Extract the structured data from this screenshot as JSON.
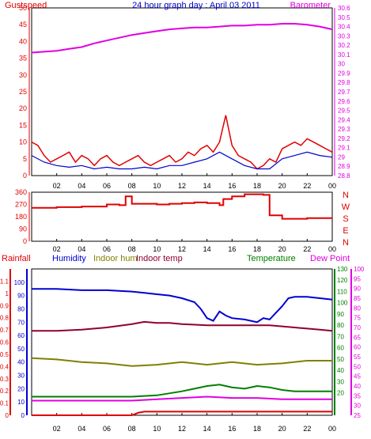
{
  "title": "24 hour graph day : April 03 2011",
  "colors": {
    "red": "#e00000",
    "blue": "#0000d0",
    "magenta": "#e000e0",
    "green": "#008000",
    "olive": "#808000",
    "maroon": "#900030",
    "darkred": "#b00000",
    "axis": "#000000",
    "yellow": "#e8e800"
  },
  "x_ticks": [
    "02",
    "04",
    "06",
    "08",
    "10",
    "12",
    "14",
    "16",
    "18",
    "20",
    "22",
    "00"
  ],
  "chart_data": [
    {
      "type": "line",
      "panel": "wind-barometer",
      "title": "24 hour graph day : April 03 2011",
      "x_range": [
        0,
        24
      ],
      "left_axis": {
        "label": "Gustspeed",
        "range": [
          0,
          50
        ],
        "ticks": [
          "0",
          "5",
          "10",
          "15",
          "20",
          "25",
          "30",
          "35",
          "40",
          "45",
          "50"
        ]
      },
      "right_axis": {
        "label": "Barometer",
        "range": [
          28.8,
          30.6
        ],
        "ticks": [
          "28.8",
          "28.9",
          "29",
          "29.1",
          "29.2",
          "29.3",
          "29.4",
          "29.5",
          "29.6",
          "29.7",
          "29.8",
          "29.9",
          "30",
          "30.1",
          "30.2",
          "30.3",
          "30.4",
          "30.5",
          "30.6"
        ]
      },
      "series": [
        {
          "name": "Barometer",
          "axis": "right",
          "color": "#e000e0",
          "x": [
            0,
            1,
            2,
            3,
            4,
            5,
            6,
            7,
            8,
            9,
            10,
            11,
            12,
            13,
            14,
            15,
            16,
            17,
            18,
            19,
            20,
            21,
            22,
            23,
            24
          ],
          "y": [
            30.12,
            30.13,
            30.14,
            30.16,
            30.18,
            30.22,
            30.25,
            30.28,
            30.31,
            30.33,
            30.35,
            30.37,
            30.38,
            30.39,
            30.39,
            30.4,
            30.41,
            30.41,
            30.42,
            30.42,
            30.43,
            30.43,
            30.42,
            30.4,
            30.37
          ]
        },
        {
          "name": "Gustspeed",
          "axis": "left",
          "color": "#e00000",
          "x": [
            0,
            0.5,
            1,
            1.5,
            2,
            2.5,
            3,
            3.5,
            4,
            4.5,
            5,
            5.5,
            6,
            6.5,
            7,
            7.5,
            8,
            8.5,
            9,
            9.5,
            10,
            10.5,
            11,
            11.5,
            12,
            12.5,
            13,
            13.5,
            14,
            14.5,
            15,
            15.5,
            16,
            16.5,
            17,
            17.5,
            18,
            18.5,
            19,
            19.5,
            20,
            20.5,
            21,
            21.5,
            22,
            22.5,
            23,
            23.5,
            24
          ],
          "y": [
            10,
            9,
            6,
            4,
            5,
            6,
            7,
            4,
            6,
            5,
            3,
            5,
            6,
            4,
            3,
            4,
            5,
            6,
            4,
            3,
            4,
            5,
            6,
            4,
            5,
            7,
            6,
            8,
            9,
            7,
            10,
            18,
            9,
            6,
            5,
            4,
            2,
            3,
            5,
            4,
            8,
            9,
            10,
            9,
            11,
            10,
            9,
            8,
            7
          ]
        },
        {
          "name": "Windspeed",
          "axis": "left",
          "color": "#0000d0",
          "x": [
            0,
            1,
            2,
            3,
            4,
            5,
            6,
            7,
            8,
            9,
            10,
            11,
            12,
            13,
            14,
            15,
            16,
            17,
            18,
            19,
            20,
            21,
            22,
            23,
            24
          ],
          "y": [
            6,
            4,
            3,
            2.5,
            3,
            2,
            2.5,
            2,
            2,
            2.5,
            2,
            3,
            3,
            4,
            5,
            7,
            5,
            3,
            2,
            2,
            5,
            6,
            7,
            6,
            5.5
          ]
        }
      ]
    },
    {
      "type": "line",
      "panel": "wind-direction",
      "x_range": [
        0,
        24
      ],
      "left_axis": {
        "range": [
          0,
          360
        ],
        "ticks": [
          "0",
          "90",
          "180",
          "270",
          "360"
        ]
      },
      "right_labels": [
        "N",
        "W",
        "S",
        "E",
        "N"
      ],
      "series": [
        {
          "name": "Wind direction",
          "color": "#e00000",
          "x": [
            0,
            2,
            4,
            6,
            7,
            7.5,
            8,
            10,
            11,
            12,
            13,
            14,
            15,
            15.3,
            16,
            17,
            18,
            18.5,
            19,
            20,
            22,
            24
          ],
          "y": [
            245,
            250,
            255,
            270,
            265,
            330,
            275,
            270,
            275,
            280,
            285,
            280,
            265,
            310,
            330,
            345,
            345,
            340,
            190,
            165,
            170,
            170
          ]
        }
      ]
    },
    {
      "type": "line",
      "panel": "rain-humidity-temperature",
      "x_range": [
        0,
        24
      ],
      "axes": [
        {
          "label": "Rainfall",
          "range": [
            0,
            1.2
          ],
          "ticks": [
            "0",
            "0.1",
            "0.2",
            "0.3",
            "0.4",
            "0.5",
            "0.6",
            "0.7",
            "0.8",
            "0.9",
            "1",
            "1.1"
          ]
        },
        {
          "label": "Humidity",
          "range": [
            0,
            110
          ],
          "ticks": [
            "0",
            "10",
            "20",
            "30",
            "40",
            "50",
            "60",
            "70",
            "80",
            "90",
            "100"
          ]
        },
        {
          "label": "Temperature",
          "range": [
            0,
            130
          ],
          "ticks": [
            "20",
            "30",
            "40",
            "50",
            "60",
            "70",
            "80",
            "90",
            "100",
            "110",
            "120",
            "130"
          ]
        },
        {
          "label": "Dew Point",
          "range": [
            25,
            100
          ],
          "ticks": [
            "25",
            "30",
            "35",
            "40",
            "45",
            "50",
            "55",
            "60",
            "65",
            "70",
            "75",
            "80",
            "85",
            "90",
            "95",
            "100"
          ]
        }
      ],
      "labels": [
        "Rainfall",
        "Humidity",
        "Indoor hum",
        "Indoor temp",
        "Temperature",
        "Dew Point"
      ],
      "series": [
        {
          "name": "Humidity",
          "color": "#0000d0",
          "x": [
            0,
            2,
            4,
            6,
            8,
            9,
            10,
            11,
            12,
            13,
            13.5,
            14,
            14.5,
            15,
            15.5,
            16,
            17,
            18,
            18.5,
            19,
            20,
            20.5,
            21,
            22,
            23,
            24
          ],
          "y": [
            95,
            95,
            94,
            94,
            93,
            92,
            91,
            90,
            88,
            85,
            80,
            73,
            71,
            78,
            75,
            73,
            72,
            70,
            73,
            72,
            82,
            88,
            89,
            89,
            88,
            87
          ]
        },
        {
          "name": "Indoor temp",
          "color": "#900030",
          "x": [
            0,
            2,
            4,
            6,
            8,
            9,
            10,
            11,
            12,
            14,
            16,
            18,
            19,
            20,
            21,
            22,
            23,
            24
          ],
          "y": [
            75,
            75,
            76,
            78,
            81,
            83,
            82,
            82,
            81,
            80,
            80,
            80,
            80,
            79,
            78,
            77,
            76,
            75
          ]
        },
        {
          "name": "Indoor hum",
          "color": "#808000",
          "x": [
            0,
            2,
            4,
            6,
            8,
            10,
            12,
            14,
            16,
            18,
            20,
            22,
            24
          ],
          "y": [
            43,
            42,
            40,
            39,
            37,
            38,
            40,
            38,
            40,
            38,
            39,
            41,
            41
          ]
        },
        {
          "name": "Temperature",
          "color": "#008000",
          "x": [
            0,
            2,
            4,
            6,
            8,
            10,
            12,
            13,
            14,
            15,
            16,
            17,
            18,
            19,
            20,
            21,
            22,
            23,
            24
          ],
          "y": [
            14,
            14,
            14,
            14,
            14,
            15,
            18,
            20,
            22,
            23,
            21,
            20,
            22,
            21,
            19,
            18,
            18,
            18,
            18
          ]
        },
        {
          "name": "Dew Point",
          "color": "#e000e0",
          "x": [
            0,
            2,
            4,
            6,
            8,
            10,
            12,
            14,
            16,
            18,
            20,
            22,
            24
          ],
          "y": [
            11,
            11,
            11,
            11,
            11,
            12,
            13,
            14,
            13,
            13,
            12,
            12,
            12
          ]
        },
        {
          "name": "Rainfall",
          "color": "#e00000",
          "x": [
            0,
            8,
            8.5,
            9,
            12,
            24
          ],
          "y": [
            0,
            0,
            0.02,
            0.03,
            0.03,
            0.03
          ]
        }
      ]
    }
  ]
}
